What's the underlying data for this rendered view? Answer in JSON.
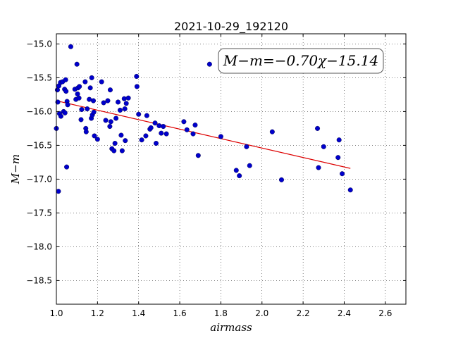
{
  "chart_data": {
    "type": "scatter",
    "title": "2021-10-29_192120",
    "xlabel": "airmass",
    "ylabel": "M−m",
    "xlim": [
      1.0,
      2.7
    ],
    "ylim": [
      -18.85,
      -14.85
    ],
    "y_inverted": true,
    "grid": true,
    "xticks": [
      1.0,
      1.2,
      1.4,
      1.6,
      1.8,
      2.0,
      2.2,
      2.4,
      2.6
    ],
    "xtick_labels": [
      "1.0",
      "1.2",
      "1.4",
      "1.6",
      "1.8",
      "2.0",
      "2.2",
      "2.4",
      "2.6"
    ],
    "yticks": [
      -15.0,
      -15.5,
      -16.0,
      -16.5,
      -17.0,
      -17.5,
      -18.0,
      -18.5
    ],
    "ytick_labels": [
      "−15.0",
      "−15.5",
      "−16.0",
      "−16.5",
      "−17.0",
      "−17.5",
      "−18.0",
      "−18.5"
    ],
    "annotation": "M−m=−0.70χ−15.14",
    "point_color": "#0000cc",
    "fit_color": "#dd0000",
    "fit": {
      "slope": -0.7,
      "intercept": -15.14,
      "x_range": [
        1.0,
        2.43
      ]
    },
    "points": [
      [
        1.0,
        -16.25
      ],
      [
        1.005,
        -15.68
      ],
      [
        1.007,
        -15.86
      ],
      [
        1.01,
        -17.18
      ],
      [
        1.012,
        -15.62
      ],
      [
        1.015,
        -16.03
      ],
      [
        1.02,
        -15.57
      ],
      [
        1.022,
        -16.07
      ],
      [
        1.03,
        -15.56
      ],
      [
        1.035,
        -16.0
      ],
      [
        1.04,
        -15.67
      ],
      [
        1.042,
        -16.02
      ],
      [
        1.045,
        -15.53
      ],
      [
        1.047,
        -15.7
      ],
      [
        1.05,
        -16.82
      ],
      [
        1.052,
        -15.85
      ],
      [
        1.055,
        -15.9
      ],
      [
        1.07,
        -15.04
      ],
      [
        1.09,
        -15.67
      ],
      [
        1.095,
        -15.82
      ],
      [
        1.1,
        -15.3
      ],
      [
        1.103,
        -15.74
      ],
      [
        1.105,
        -15.65
      ],
      [
        1.11,
        -15.8
      ],
      [
        1.112,
        -15.63
      ],
      [
        1.12,
        -16.12
      ],
      [
        1.123,
        -15.97
      ],
      [
        1.14,
        -15.56
      ],
      [
        1.143,
        -16.25
      ],
      [
        1.145,
        -16.3
      ],
      [
        1.15,
        -15.96
      ],
      [
        1.16,
        -15.82
      ],
      [
        1.165,
        -15.65
      ],
      [
        1.17,
        -16.1
      ],
      [
        1.172,
        -15.5
      ],
      [
        1.175,
        -16.05
      ],
      [
        1.18,
        -15.84
      ],
      [
        1.182,
        -16.01
      ],
      [
        1.185,
        -16.36
      ],
      [
        1.2,
        -16.41
      ],
      [
        1.22,
        -15.56
      ],
      [
        1.23,
        -15.87
      ],
      [
        1.24,
        -16.13
      ],
      [
        1.25,
        -15.84
      ],
      [
        1.26,
        -16.22
      ],
      [
        1.262,
        -15.68
      ],
      [
        1.265,
        -16.15
      ],
      [
        1.27,
        -16.55
      ],
      [
        1.28,
        -16.58
      ],
      [
        1.285,
        -16.47
      ],
      [
        1.29,
        -16.1
      ],
      [
        1.3,
        -15.86
      ],
      [
        1.31,
        -15.98
      ],
      [
        1.315,
        -16.35
      ],
      [
        1.32,
        -16.58
      ],
      [
        1.33,
        -15.81
      ],
      [
        1.333,
        -15.96
      ],
      [
        1.335,
        -16.43
      ],
      [
        1.34,
        -15.88
      ],
      [
        1.35,
        -15.8
      ],
      [
        1.39,
        -15.48
      ],
      [
        1.392,
        -15.63
      ],
      [
        1.4,
        -16.04
      ],
      [
        1.415,
        -16.42
      ],
      [
        1.435,
        -16.36
      ],
      [
        1.44,
        -16.06
      ],
      [
        1.455,
        -16.26
      ],
      [
        1.46,
        -16.24
      ],
      [
        1.48,
        -16.17
      ],
      [
        1.485,
        -16.47
      ],
      [
        1.5,
        -16.21
      ],
      [
        1.51,
        -16.32
      ],
      [
        1.52,
        -16.22
      ],
      [
        1.535,
        -16.33
      ],
      [
        1.62,
        -16.15
      ],
      [
        1.635,
        -16.27
      ],
      [
        1.665,
        -16.33
      ],
      [
        1.675,
        -16.2
      ],
      [
        1.69,
        -16.65
      ],
      [
        1.745,
        -15.3
      ],
      [
        1.8,
        -16.37
      ],
      [
        1.875,
        -16.87
      ],
      [
        1.89,
        -16.95
      ],
      [
        1.925,
        -16.52
      ],
      [
        1.94,
        -16.8
      ],
      [
        2.05,
        -16.3
      ],
      [
        2.095,
        -17.01
      ],
      [
        2.27,
        -16.25
      ],
      [
        2.275,
        -16.83
      ],
      [
        2.3,
        -16.52
      ],
      [
        2.37,
        -16.68
      ],
      [
        2.375,
        -16.42
      ],
      [
        2.39,
        -16.92
      ],
      [
        2.43,
        -17.16
      ]
    ]
  }
}
